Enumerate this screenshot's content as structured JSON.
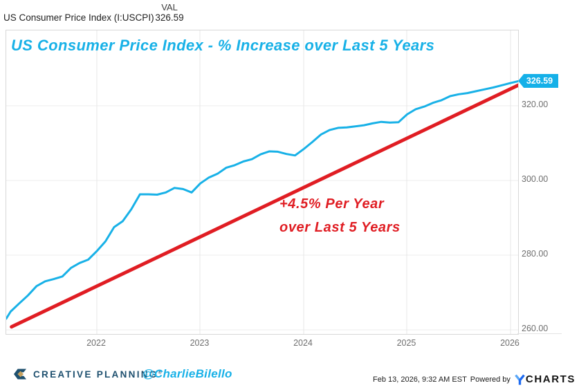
{
  "header": {
    "series_label": "US Consumer Price Index (I:USCPI)",
    "val_column": "VAL",
    "val": "326.59"
  },
  "chart_data": {
    "type": "line",
    "title": "US Consumer Price Index - % Increase over Last 5 Years",
    "x_ticks": [
      "2022",
      "2023",
      "2024",
      "2025",
      "2026"
    ],
    "y_ticks": [
      {
        "label": "320.00",
        "value": 320
      },
      {
        "label": "300.00",
        "value": 300
      },
      {
        "label": "280.00",
        "value": 280
      },
      {
        "label": "260.00",
        "value": 260
      }
    ],
    "ylim": [
      258.5,
      328.5
    ],
    "grid": true,
    "legend_position": "none",
    "series": [
      {
        "name": "US Consumer Price Index (I:USCPI)",
        "start_month": "2021-02",
        "frequency": "monthly",
        "values": [
          263.0,
          264.9,
          267.1,
          269.2,
          271.7,
          273.0,
          273.6,
          274.3,
          276.6,
          277.9,
          278.8,
          281.1,
          283.7,
          287.5,
          289.1,
          292.3,
          296.3,
          296.3,
          296.2,
          296.8,
          298.0,
          297.7,
          296.8,
          299.2,
          300.8,
          301.8,
          303.4,
          304.1,
          305.1,
          305.7,
          307.0,
          307.8,
          307.7,
          307.1,
          306.7,
          308.4,
          310.3,
          312.3,
          313.5,
          314.1,
          314.2,
          314.5,
          314.8,
          315.3,
          315.7,
          315.5,
          315.6,
          317.7,
          319.1,
          319.8,
          320.8,
          321.5,
          322.6,
          323.1,
          323.4,
          323.9,
          324.4,
          324.9,
          325.5,
          326.1,
          326.59
        ]
      }
    ],
    "trend_line": {
      "start": {
        "t": 1.1,
        "value": 260.8
      },
      "end": {
        "t": 60.0,
        "value": 325.5
      },
      "label_line1": "+4.5% Per Year",
      "label_line2": "over Last 5 Years"
    },
    "end_label": "326.59"
  },
  "colors": {
    "line": "#18b1e7",
    "trend": "#e01d23",
    "title": "#18b1e7",
    "annotation": "#e01d23",
    "badge": "#15b0e8",
    "brand_navy": "#1d4f6e",
    "brand_gold": "#c5a05e",
    "ycharts_blue": "#1e6bf1",
    "ycharts_light_blue": "#5aa7f7"
  },
  "footer": {
    "brand": "CREATIVE PLANNING",
    "brand_mark": "®",
    "handle": "@CharlieBilello",
    "timestamp": "Feb 13, 2026, 9:32 AM EST",
    "powered_by": "Powered by",
    "ycharts_rest": "CHARTS"
  }
}
